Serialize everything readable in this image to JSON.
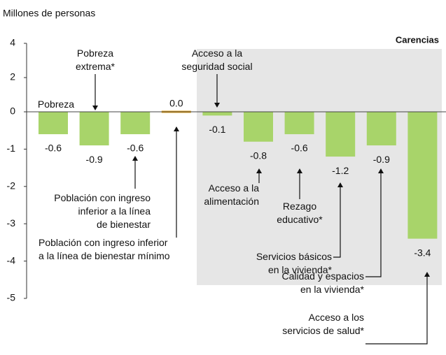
{
  "chart_data": {
    "type": "bar",
    "ylabel": "Millones de personas",
    "region_label": "Carencias",
    "categories": [
      [
        "Pobreza"
      ],
      [
        "Pobreza",
        "extrema*"
      ],
      [
        "Población con ingreso",
        "inferior  a la línea",
        "de bienestar"
      ],
      [
        "Población con ingreso inferior",
        "a la línea  de bienestar mínimo"
      ],
      [
        "Acceso a la",
        "seguridad social"
      ],
      [
        "Acceso a la",
        "alimentación"
      ],
      [
        "Rezago",
        "educativo*"
      ],
      [
        "Servicios básicos",
        "en la vivienda*"
      ],
      [
        "Calidad y espacios",
        "en la vivienda*"
      ],
      [
        "Acceso a los",
        "servicios de salud*"
      ]
    ],
    "values": [
      -0.6,
      -0.9,
      -0.6,
      0.0,
      -0.1,
      -0.8,
      -0.6,
      -1.2,
      -0.9,
      -3.4
    ],
    "value_labels": [
      "-0.6",
      "-0.9",
      "-0.6",
      "0.0",
      "-0.1",
      "-0.8",
      "-0.6",
      "-1.2",
      "-0.9",
      "-3.4"
    ],
    "color": "#a8d46a",
    "zero_color": "#e3a21a",
    "region_color": "#e6e6e6",
    "ylim": [
      -5,
      4
    ],
    "yticks": [
      4,
      2,
      0,
      -1,
      -2,
      -3,
      -4,
      -5
    ]
  }
}
